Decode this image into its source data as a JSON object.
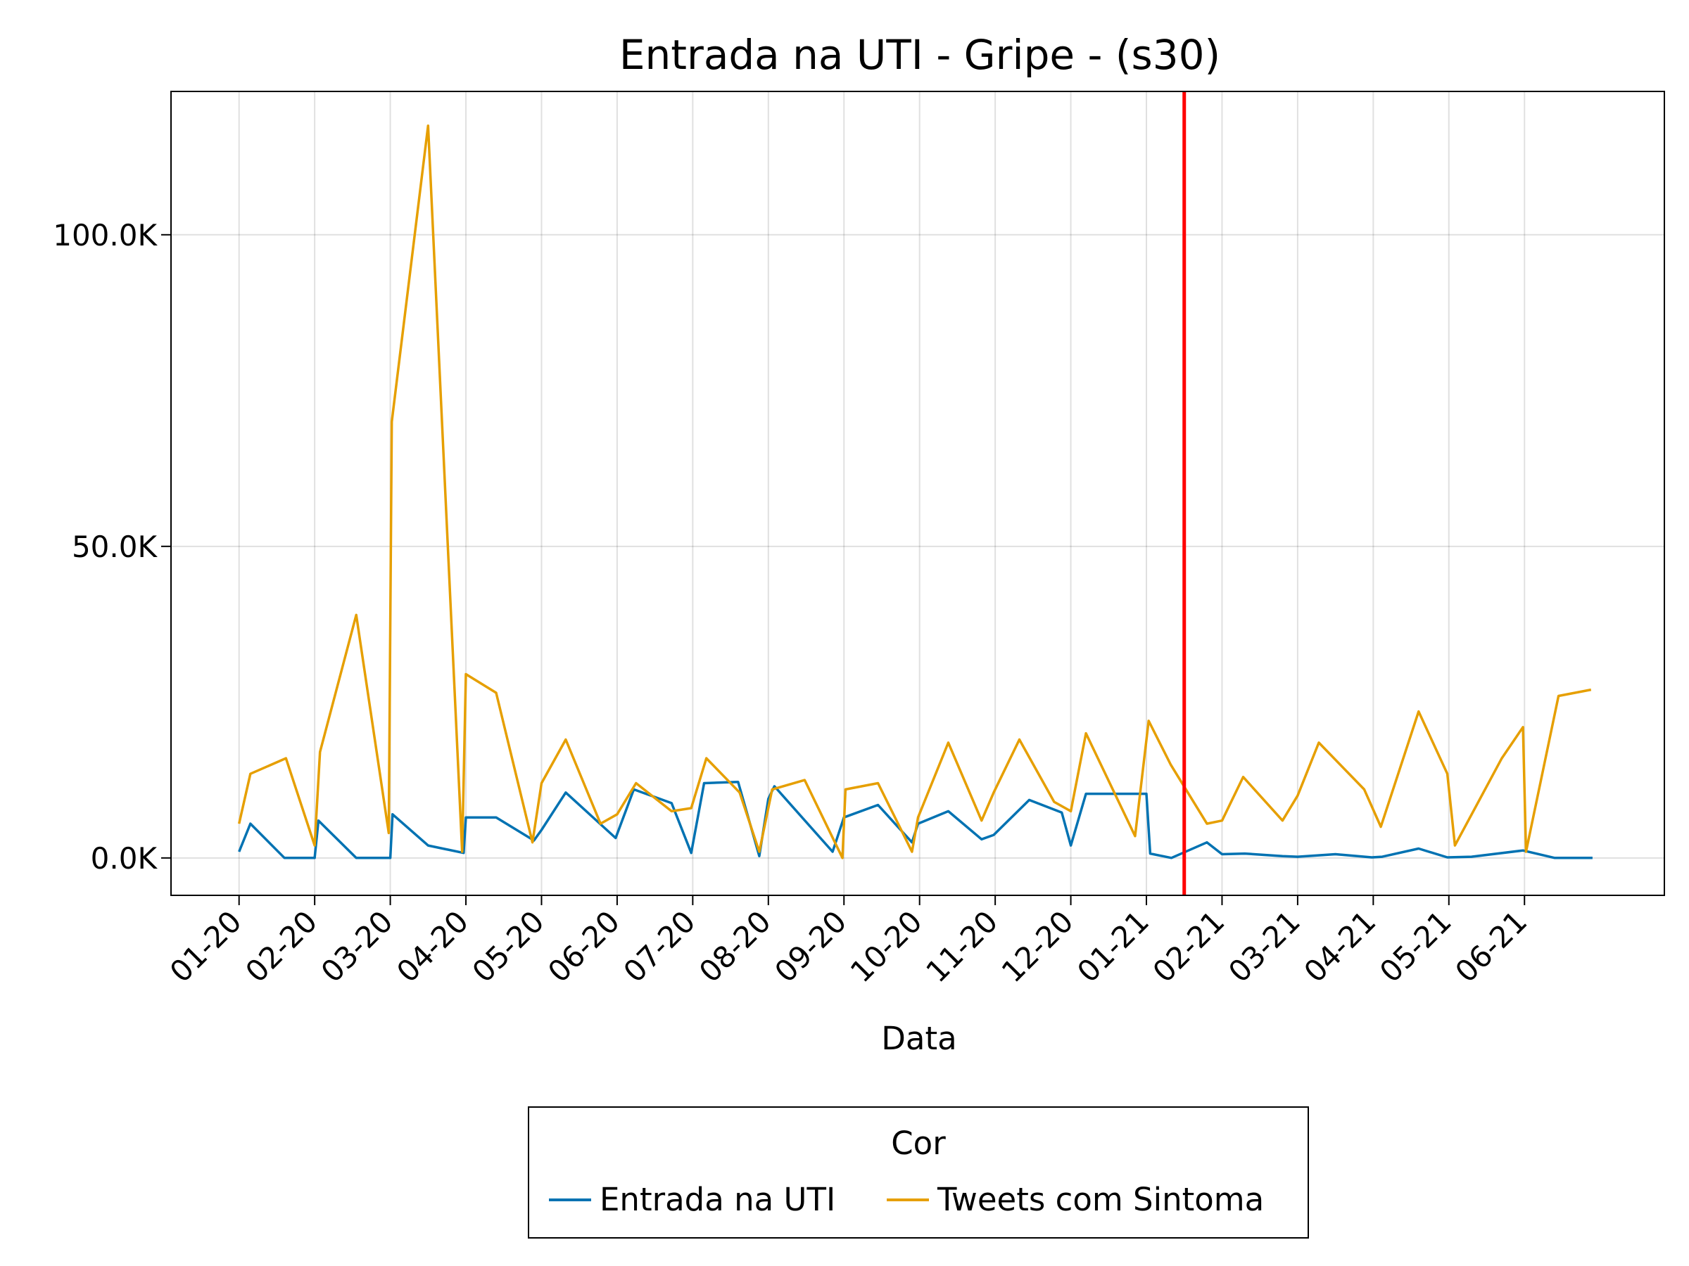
{
  "chart_data": {
    "type": "line",
    "title": "Entrada na UTI - Gripe - (s30)",
    "xlabel": "Data",
    "ylabel": "",
    "x_tick_labels": [
      "01-20",
      "02-20",
      "03-20",
      "04-20",
      "05-20",
      "06-20",
      "07-20",
      "08-20",
      "09-20",
      "10-20",
      "11-20",
      "12-20",
      "01-21",
      "02-21",
      "03-21",
      "04-21",
      "05-21",
      "06-21"
    ],
    "y_tick_labels": [
      "0.0K",
      "50.0K",
      "100.0K"
    ],
    "y_ticks": [
      0,
      50000,
      100000
    ],
    "x_range": [
      -0.9,
      18.85
    ],
    "ylim": [
      -6000,
      123000
    ],
    "grid": true,
    "vline": {
      "x": 12.5,
      "color": "#ff0000"
    },
    "legend": {
      "title": "Cor",
      "placement": "bottom"
    },
    "series": [
      {
        "name": "Entrada na UTI",
        "color": "#0072b2",
        "x": [
          0.0,
          0.15,
          0.6,
          1.0,
          1.05,
          1.55,
          2.0,
          2.03,
          2.5,
          2.97,
          3.0,
          3.4,
          3.9,
          4.0,
          4.32,
          4.98,
          5.22,
          5.72,
          5.98,
          6.15,
          6.6,
          6.88,
          7.0,
          7.08,
          7.85,
          8.0,
          8.45,
          8.9,
          8.98,
          9.38,
          9.82,
          9.98,
          10.45,
          10.88,
          11.0,
          11.2,
          12.0,
          12.05,
          12.33,
          12.8,
          13.0,
          13.3,
          13.8,
          14.0,
          14.5,
          14.98,
          15.12,
          15.6,
          15.98,
          16.3,
          16.98,
          17.4,
          17.9
        ],
        "values": [
          1000,
          5500,
          0,
          0,
          6000,
          0,
          0,
          7000,
          2000,
          800,
          6500,
          6500,
          2800,
          4500,
          10500,
          3200,
          11000,
          8800,
          800,
          12000,
          12200,
          300,
          9500,
          11500,
          1000,
          6500,
          8500,
          2500,
          5500,
          7500,
          3000,
          3700,
          9300,
          7300,
          2000,
          10300,
          10300,
          700,
          0,
          2500,
          600,
          700,
          300,
          200,
          600,
          100,
          200,
          1500,
          100,
          200,
          1200,
          0,
          0
        ]
      },
      {
        "name": "Tweets com Sintoma",
        "color": "#e69f00",
        "x": [
          0.0,
          0.15,
          0.62,
          1.0,
          1.07,
          1.55,
          1.98,
          2.02,
          2.5,
          2.95,
          3.0,
          3.4,
          3.88,
          4.0,
          4.32,
          4.78,
          5.0,
          5.25,
          5.72,
          5.98,
          6.18,
          6.62,
          6.88,
          7.05,
          7.48,
          7.98,
          8.02,
          8.45,
          8.9,
          8.98,
          9.38,
          9.82,
          9.98,
          10.32,
          10.78,
          11.0,
          11.2,
          11.85,
          12.03,
          12.32,
          12.8,
          13.0,
          13.28,
          13.8,
          14.0,
          14.28,
          14.88,
          15.1,
          15.6,
          15.98,
          16.08,
          16.7,
          16.98,
          17.02,
          17.45,
          17.88
        ],
        "values": [
          5500,
          13500,
          16000,
          2000,
          17000,
          39000,
          4000,
          70000,
          117500,
          1000,
          29500,
          26500,
          2500,
          12000,
          19000,
          5500,
          7000,
          12000,
          7500,
          8000,
          16000,
          10500,
          1000,
          11000,
          12500,
          0,
          11000,
          12000,
          1000,
          6500,
          18500,
          6000,
          10500,
          19000,
          9000,
          7500,
          20000,
          3500,
          22000,
          15000,
          5500,
          6000,
          13000,
          6000,
          10000,
          18500,
          11000,
          5000,
          23500,
          13500,
          2000,
          16000,
          21000,
          1000,
          26000,
          27000
        ],
        "values_note": ""
      }
    ]
  }
}
